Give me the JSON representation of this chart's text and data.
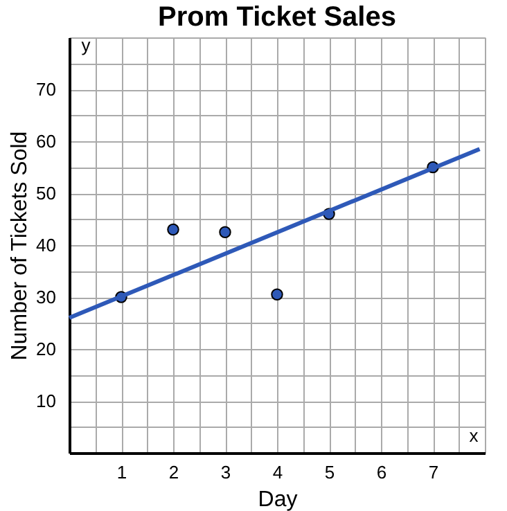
{
  "chart_data": {
    "type": "scatter",
    "title": "Prom Ticket Sales",
    "xlabel": "Day",
    "ylabel": "Number of Tickets Sold",
    "annotations": [
      "x",
      "y"
    ],
    "series": [
      {
        "type": "scatter",
        "color": "#2e59b8",
        "x": [
          1,
          2,
          3,
          4,
          5,
          7
        ],
        "values": [
          30,
          43,
          42.5,
          30.5,
          46,
          55
        ],
        "marker": "circle"
      },
      {
        "type": "line",
        "color": "#2e59b8",
        "x": [
          0,
          7.9
        ],
        "values": [
          26,
          58.5
        ],
        "marker": "none",
        "line_style": "solid"
      }
    ],
    "xlim": [
      0,
      8
    ],
    "ylim": [
      0,
      80
    ],
    "xticks": [
      {
        "value": 0.5,
        "label": null
      },
      1,
      {
        "value": 1.5,
        "label": null
      },
      2,
      {
        "value": 2.5,
        "label": null
      },
      3,
      {
        "value": 3.5,
        "label": null
      },
      4,
      {
        "value": 4.5,
        "label": null
      },
      5,
      {
        "value": 5.5,
        "label": null
      },
      6,
      {
        "value": 6.5,
        "label": null
      },
      7,
      {
        "value": 7.5,
        "label": null
      },
      {
        "value": 8,
        "label": null
      }
    ],
    "yticks": [
      {
        "value": 5,
        "label": null
      },
      10,
      {
        "value": 15,
        "label": null
      },
      20,
      {
        "value": 25,
        "label": null
      },
      30,
      {
        "value": 35,
        "label": null
      },
      40,
      {
        "value": 45,
        "label": null
      },
      50,
      {
        "value": 55,
        "label": null
      },
      60,
      {
        "value": 65,
        "label": null
      },
      70,
      {
        "value": 75,
        "label": null
      },
      {
        "value": 80,
        "label": null
      }
    ],
    "grid": true
  }
}
